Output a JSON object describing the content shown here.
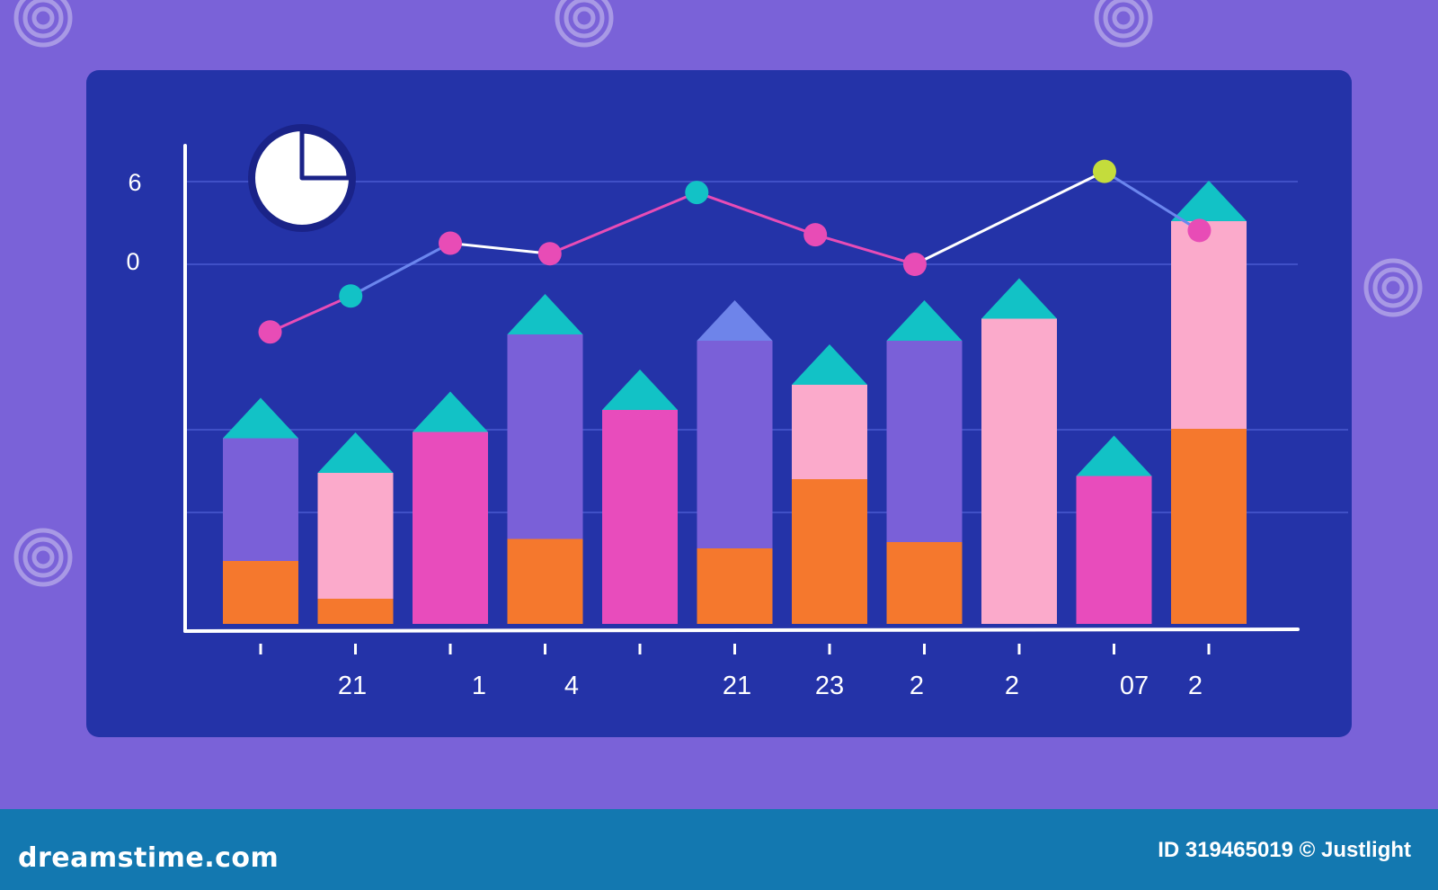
{
  "colors": {
    "background": "#7a62d8",
    "panel": "#2433a8",
    "axis": "#ffffff",
    "gridline": "#4a5ad0",
    "line_pink": "#e84cb6",
    "line_blue": "#6b86ee",
    "line_white": "#ffffff",
    "teal": "#12c2c6",
    "purple": "#7a60d8",
    "orange": "#f5782d",
    "magenta": "#e84cbc",
    "light_pink": "#fbaacb",
    "periwinkle": "#6e84ea",
    "lime": "#c4dc3c",
    "footer": "#1378b0"
  },
  "icons": [
    "pie-chart-icon",
    "spiral-watermark-icon"
  ],
  "watermark": {
    "logo": "dreamstime.com",
    "id": "ID 319465019 © Justlight"
  },
  "chart_data": {
    "type": "bar",
    "stacked": true,
    "y_tick_labels": [
      "6",
      "0"
    ],
    "x_tick_labels": [
      "",
      "21",
      "1",
      "4",
      "",
      "21",
      "23",
      "2",
      "2",
      "07",
      "2"
    ],
    "bars": [
      {
        "segments": [
          {
            "color": "orange",
            "value": 1.0
          },
          {
            "color": "purple",
            "value": 1.95
          }
        ],
        "cap": "teal"
      },
      {
        "segments": [
          {
            "color": "orange",
            "value": 0.4
          },
          {
            "color": "light_pink",
            "value": 2.0
          }
        ],
        "cap": "teal"
      },
      {
        "segments": [
          {
            "color": "magenta",
            "value": 3.05
          }
        ],
        "cap": "teal"
      },
      {
        "segments": [
          {
            "color": "orange",
            "value": 1.35
          },
          {
            "color": "purple",
            "value": 3.25
          }
        ],
        "cap": "teal"
      },
      {
        "segments": [
          {
            "color": "magenta",
            "value": 3.4
          }
        ],
        "cap": "teal"
      },
      {
        "segments": [
          {
            "color": "orange",
            "value": 1.2
          },
          {
            "color": "purple",
            "value": 3.3
          }
        ],
        "cap": "periwinkle"
      },
      {
        "segments": [
          {
            "color": "orange",
            "value": 2.3
          },
          {
            "color": "light_pink",
            "value": 1.5
          }
        ],
        "cap": "teal"
      },
      {
        "segments": [
          {
            "color": "orange",
            "value": 1.3
          },
          {
            "color": "purple",
            "value": 3.2
          }
        ],
        "cap": "teal"
      },
      {
        "segments": [
          {
            "color": "light_pink",
            "value": 4.85
          }
        ],
        "cap": "teal"
      },
      {
        "segments": [
          {
            "color": "magenta",
            "value": 2.35
          }
        ],
        "cap": "teal"
      },
      {
        "segments": [
          {
            "color": "orange",
            "value": 3.1
          },
          {
            "color": "light_pink",
            "value": 3.3
          }
        ],
        "cap": "teal"
      }
    ],
    "line_series": {
      "points": [
        {
          "x": 0.1,
          "y": -1.6,
          "color": "line_pink"
        },
        {
          "x": 0.95,
          "y": -0.75,
          "color": "teal"
        },
        {
          "x": 2.0,
          "y": 0.5,
          "color": "line_pink"
        },
        {
          "x": 3.05,
          "y": 0.25,
          "color": "line_pink"
        },
        {
          "x": 4.6,
          "y": 1.7,
          "color": "teal"
        },
        {
          "x": 5.85,
          "y": 0.7,
          "color": "line_pink"
        },
        {
          "x": 6.9,
          "y": 0.0,
          "color": "line_pink"
        },
        {
          "x": 8.9,
          "y": 2.2,
          "color": "lime"
        },
        {
          "x": 9.9,
          "y": 0.8,
          "color": "line_pink"
        }
      ],
      "segment_colors": [
        "line_pink",
        "line_blue",
        "line_white",
        "line_pink",
        "line_pink",
        "line_pink",
        "line_white",
        "line_blue"
      ]
    }
  }
}
